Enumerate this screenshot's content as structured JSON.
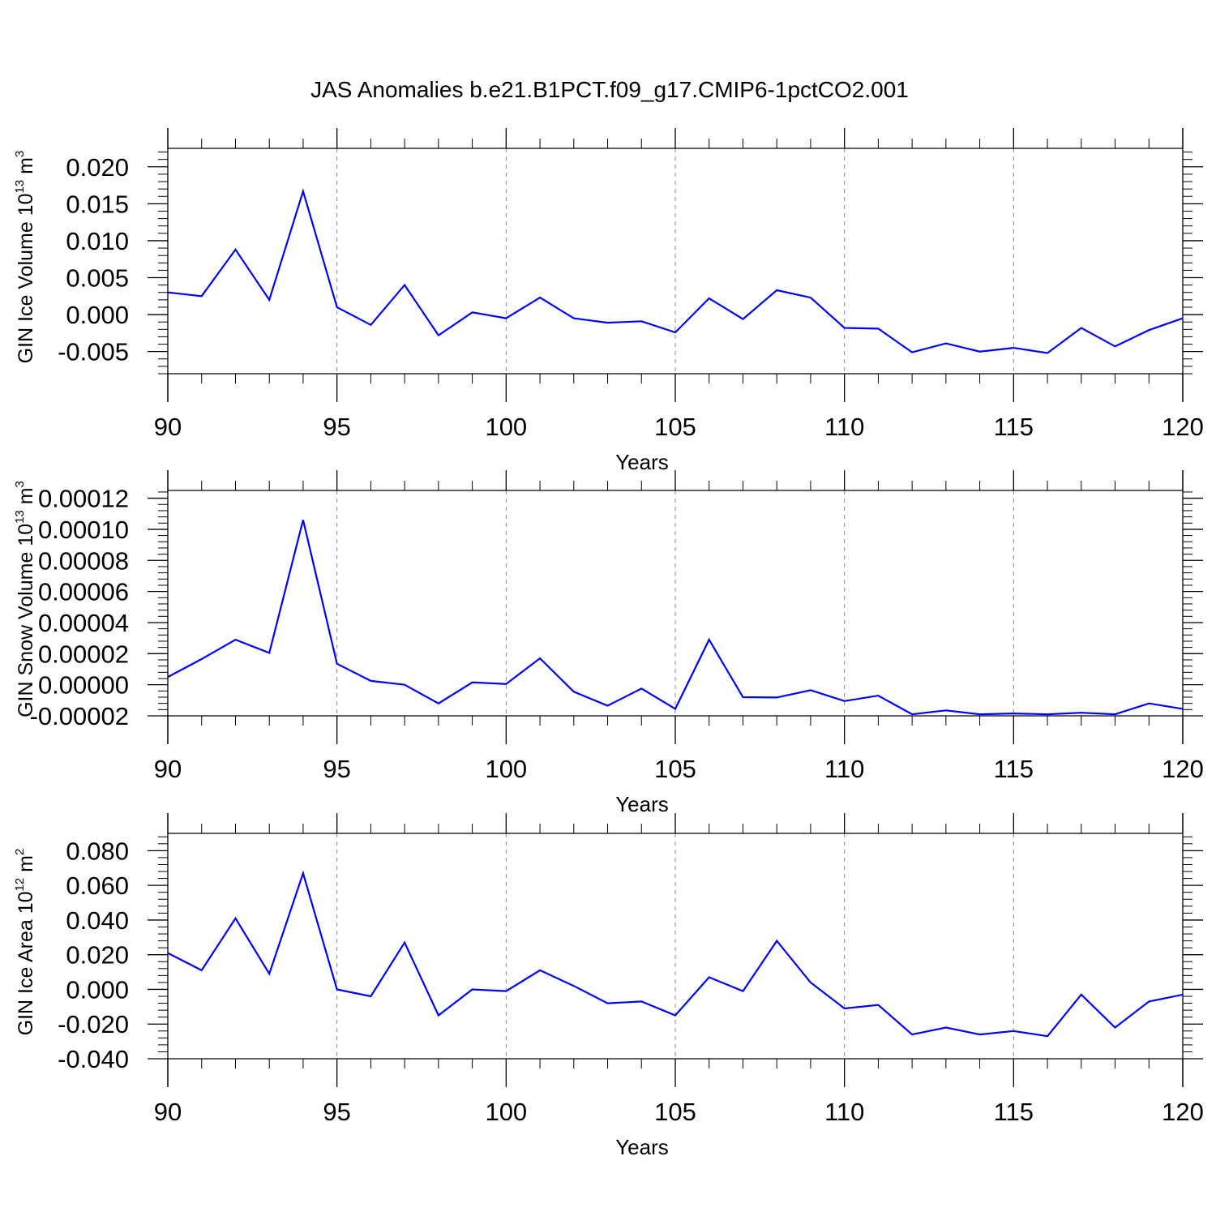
{
  "title": "JAS Anomalies b.e21.B1PCT.f09_g17.CMIP6-1pctCO2.001",
  "colors": {
    "line": "#0000ff",
    "frame": "#000000",
    "grid": "#888888"
  },
  "chart_data": [
    {
      "type": "line",
      "ylabel": {
        "main": "GIN Ice Volume 10",
        "sup": "13",
        "unit": " m",
        "unit_sup": "3"
      },
      "xlabel": "Years",
      "xlim": [
        90,
        120
      ],
      "ylim": [
        -0.008,
        0.0225
      ],
      "xticks": [
        90,
        95,
        100,
        105,
        110,
        115,
        120
      ],
      "xtick_labels": [
        "90",
        "95",
        "100",
        "105",
        "110",
        "115",
        "120"
      ],
      "yticks": [
        0.02,
        0.015,
        0.01,
        0.005,
        0.0,
        -0.005
      ],
      "ytick_labels": [
        "0.020",
        "0.015",
        "0.010",
        "0.005",
        "0.000",
        "-0.005"
      ],
      "x": [
        90,
        91,
        92,
        93,
        94,
        95,
        96,
        97,
        98,
        99,
        100,
        101,
        102,
        103,
        104,
        105,
        106,
        107,
        108,
        109,
        110,
        111,
        112,
        113,
        114,
        115,
        116,
        117,
        118,
        119,
        120
      ],
      "y": [
        0.003,
        0.0025,
        0.0088,
        0.002,
        0.0167,
        0.001,
        -0.0014,
        0.004,
        -0.0028,
        0.0003,
        -0.0005,
        0.0023,
        -0.0005,
        -0.0011,
        -0.0009,
        -0.0024,
        0.0022,
        -0.0006,
        0.0033,
        0.0023,
        -0.0018,
        -0.0019,
        -0.0051,
        -0.0039,
        -0.005,
        -0.0045,
        -0.0052,
        -0.0018,
        -0.0043,
        -0.0021,
        -0.0005
      ]
    },
    {
      "type": "line",
      "ylabel": {
        "main": "GIN Snow Volume 10",
        "sup": "13",
        "unit": " m",
        "unit_sup": "3"
      },
      "xlabel": "Years",
      "xlim": [
        90,
        120
      ],
      "ylim": [
        -2e-05,
        0.000125
      ],
      "xticks": [
        90,
        95,
        100,
        105,
        110,
        115,
        120
      ],
      "xtick_labels": [
        "90",
        "95",
        "100",
        "105",
        "110",
        "115",
        "120"
      ],
      "yticks": [
        0.00012,
        0.0001,
        8e-05,
        6e-05,
        4e-05,
        2e-05,
        0.0,
        -2e-05
      ],
      "ytick_labels": [
        "0.00012",
        "0.00010",
        "0.00008",
        "0.00006",
        "0.00004",
        "0.00002",
        "0.00000",
        "-0.00002"
      ],
      "x": [
        90,
        91,
        92,
        93,
        94,
        95,
        96,
        97,
        98,
        99,
        100,
        101,
        102,
        103,
        104,
        105,
        106,
        107,
        108,
        109,
        110,
        111,
        112,
        113,
        114,
        115,
        116,
        117,
        118,
        119,
        120
      ],
      "y": [
        5e-06,
        1.65e-05,
        2.9e-05,
        2.05e-05,
        0.000106,
        1.35e-05,
        2.5e-06,
        0.0,
        -1.2e-05,
        1.5e-06,
        5e-07,
        1.7e-05,
        -4.5e-06,
        -1.35e-05,
        -2.5e-06,
        -1.55e-05,
        2.9e-05,
        -8e-06,
        -8.2e-06,
        -3.5e-06,
        -1.05e-05,
        -7e-06,
        -1.9e-05,
        -1.65e-05,
        -1.9e-05,
        -1.85e-05,
        -1.9e-05,
        -1.8e-05,
        -1.9e-05,
        -1.2e-05,
        -1.55e-05
      ]
    },
    {
      "type": "line",
      "ylabel": {
        "main": "GIN Ice Area 10",
        "sup": "12",
        "unit": " m",
        "unit_sup": "2"
      },
      "xlabel": "Years",
      "xlim": [
        90,
        120
      ],
      "ylim": [
        -0.04,
        0.09
      ],
      "xticks": [
        90,
        95,
        100,
        105,
        110,
        115,
        120
      ],
      "xtick_labels": [
        "90",
        "95",
        "100",
        "105",
        "110",
        "115",
        "120"
      ],
      "yticks": [
        0.08,
        0.06,
        0.04,
        0.02,
        0.0,
        -0.02,
        -0.04
      ],
      "ytick_labels": [
        "0.080",
        "0.060",
        "0.040",
        "0.020",
        "0.000",
        "-0.020",
        "-0.040"
      ],
      "x": [
        90,
        91,
        92,
        93,
        94,
        95,
        96,
        97,
        98,
        99,
        100,
        101,
        102,
        103,
        104,
        105,
        106,
        107,
        108,
        109,
        110,
        111,
        112,
        113,
        114,
        115,
        116,
        117,
        118,
        119,
        120
      ],
      "y": [
        0.021,
        0.011,
        0.041,
        0.009,
        0.067,
        0.0,
        -0.004,
        0.027,
        -0.015,
        0.0,
        -0.001,
        0.011,
        0.002,
        -0.008,
        -0.007,
        -0.015,
        0.007,
        -0.001,
        0.028,
        0.004,
        -0.011,
        -0.009,
        -0.026,
        -0.022,
        -0.026,
        -0.024,
        -0.027,
        -0.003,
        -0.022,
        -0.007,
        -0.003
      ]
    }
  ]
}
